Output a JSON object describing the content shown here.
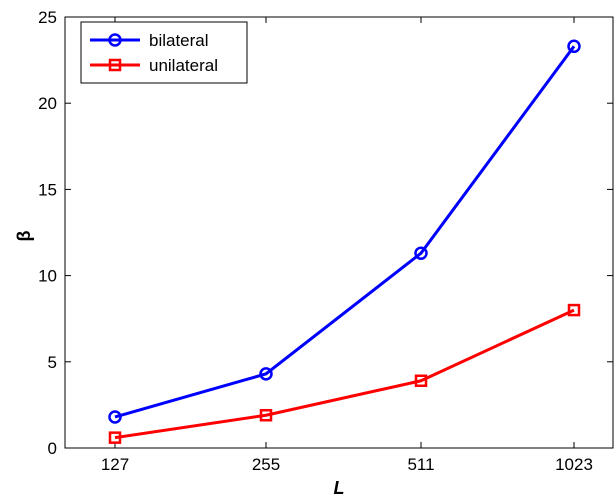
{
  "chart_data": {
    "type": "line",
    "title": "",
    "xlabel": "L",
    "ylabel": "β",
    "categories": [
      "127",
      "255",
      "511",
      "1023"
    ],
    "ylim": [
      0,
      25
    ],
    "yticks": [
      0,
      5,
      10,
      15,
      20,
      25
    ],
    "grid": false,
    "legend_position": "top-left",
    "series": [
      {
        "name": "bilateral",
        "color": "#0000ff",
        "marker": "circle",
        "values": [
          1.8,
          4.3,
          11.3,
          23.3
        ]
      },
      {
        "name": "unilateral",
        "color": "#ff0000",
        "marker": "square",
        "values": [
          0.6,
          1.9,
          3.9,
          8.0
        ]
      }
    ]
  }
}
